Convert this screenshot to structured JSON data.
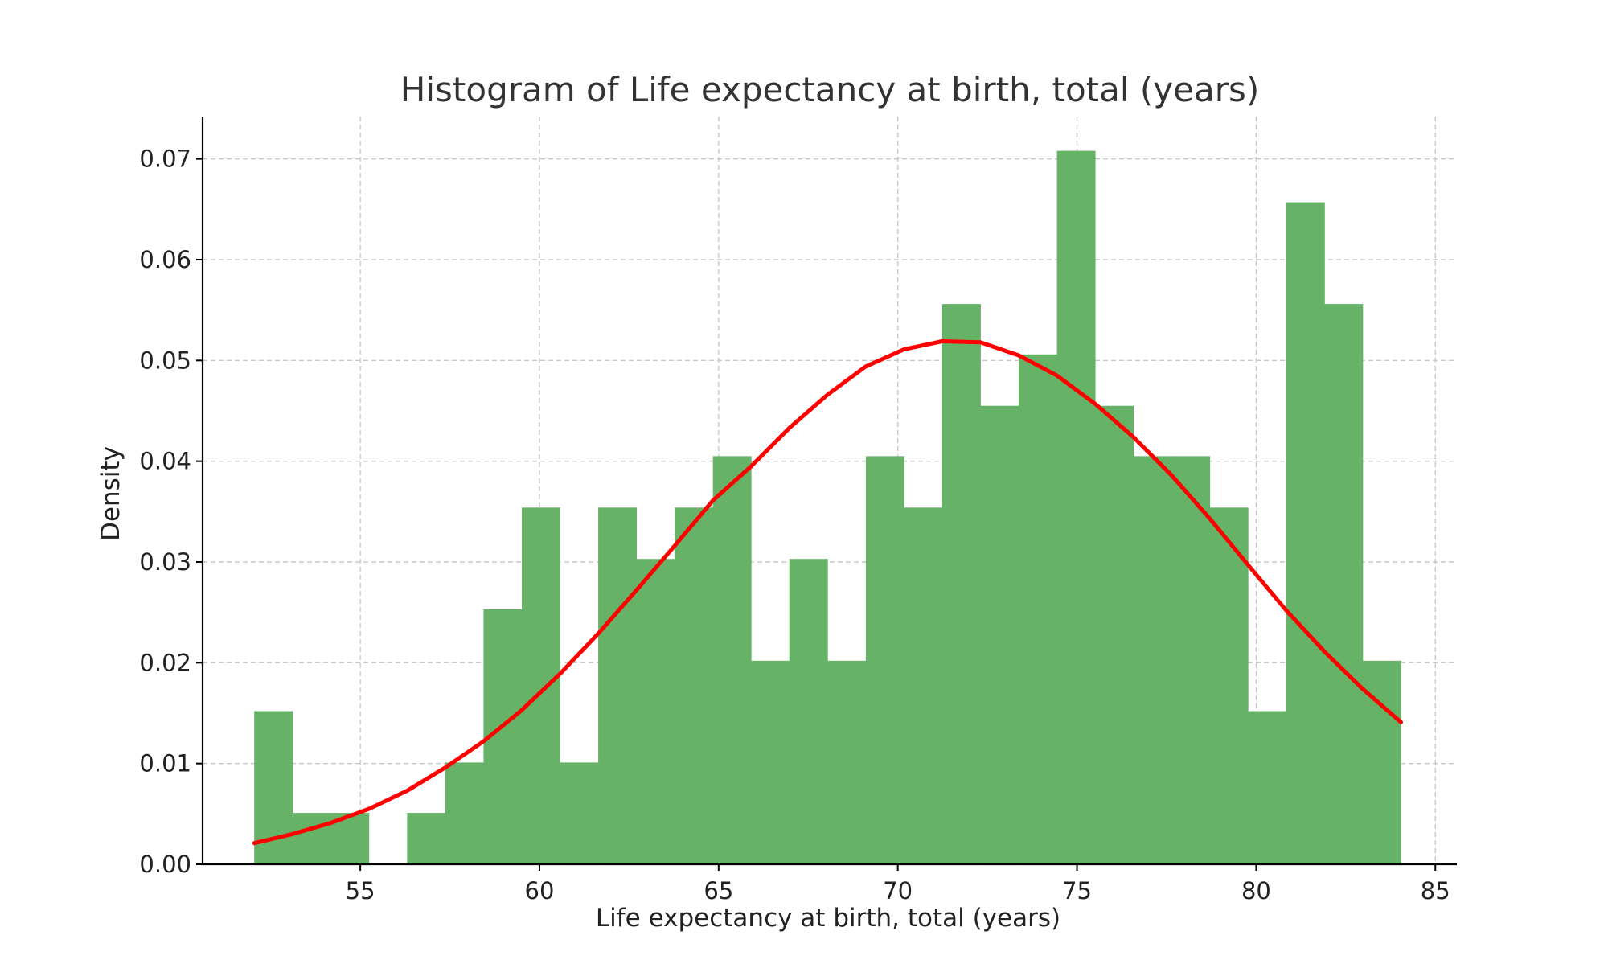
{
  "chart_data": {
    "type": "bar",
    "title": "Histogram of Life expectancy at birth, total (years)",
    "xlabel": "Life expectancy at birth, total (years)",
    "ylabel": "Density",
    "xlim": [
      50.6,
      85.6
    ],
    "ylim": [
      0,
      0.0742
    ],
    "x_ticks": [
      55,
      60,
      65,
      70,
      75,
      80,
      85
    ],
    "x_tick_labels": [
      "55",
      "60",
      "65",
      "70",
      "75",
      "80",
      "85"
    ],
    "y_ticks": [
      0.0,
      0.01,
      0.02,
      0.03,
      0.04,
      0.05,
      0.06,
      0.07
    ],
    "y_tick_labels": [
      "0.00",
      "0.01",
      "0.02",
      "0.03",
      "0.04",
      "0.05",
      "0.06",
      "0.07"
    ],
    "grid": true,
    "bar_color": "#66b266",
    "curve_color": "#ff0000",
    "bins": {
      "edges": [
        52.04,
        53.107,
        54.173,
        55.24,
        56.307,
        57.373,
        58.44,
        59.507,
        60.573,
        61.64,
        62.707,
        63.773,
        64.84,
        65.907,
        66.973,
        68.04,
        69.107,
        70.173,
        71.24,
        72.307,
        73.373,
        74.44,
        75.507,
        76.573,
        77.64,
        78.707,
        79.773,
        80.84,
        81.907,
        82.973,
        84.04
      ],
      "densities": [
        0.0152,
        0.0051,
        0.0051,
        0.0,
        0.0051,
        0.0101,
        0.0253,
        0.0354,
        0.0101,
        0.0354,
        0.0303,
        0.0354,
        0.0405,
        0.0202,
        0.0303,
        0.0202,
        0.0405,
        0.0354,
        0.0556,
        0.0455,
        0.0506,
        0.0708,
        0.0455,
        0.0405,
        0.0405,
        0.0354,
        0.0152,
        0.0657,
        0.0556,
        0.0202
      ]
    },
    "series": [
      {
        "type": "line",
        "x": [
          52.04,
          53.107,
          54.173,
          55.24,
          56.307,
          57.373,
          58.44,
          59.507,
          60.573,
          61.64,
          62.707,
          63.773,
          64.84,
          65.907,
          66.973,
          68.04,
          69.107,
          70.173,
          71.24,
          72.307,
          73.373,
          74.44,
          75.507,
          76.573,
          77.64,
          78.707,
          79.773,
          80.84,
          81.907,
          82.973,
          84.04
        ],
        "values": [
          0.0021,
          0.003,
          0.0041,
          0.0055,
          0.0073,
          0.0096,
          0.0122,
          0.0153,
          0.0189,
          0.0229,
          0.0272,
          0.0316,
          0.0361,
          0.0395,
          0.0433,
          0.0466,
          0.0494,
          0.0511,
          0.0519,
          0.0518,
          0.0505,
          0.0485,
          0.0457,
          0.0424,
          0.0386,
          0.0343,
          0.0297,
          0.0252,
          0.0211,
          0.0174,
          0.0141
        ]
      }
    ]
  }
}
